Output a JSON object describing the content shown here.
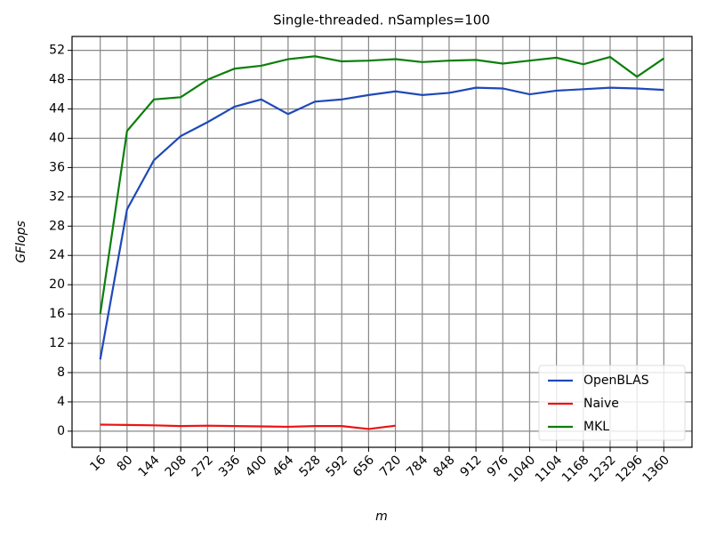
{
  "chart_data": {
    "type": "line",
    "title": "Single-threaded. nSamples=100",
    "x_label": "m",
    "y_label": "GFlops",
    "x": [
      16,
      80,
      144,
      208,
      272,
      336,
      400,
      464,
      528,
      592,
      656,
      720,
      784,
      848,
      912,
      976,
      1040,
      1104,
      1168,
      1232,
      1296,
      1360
    ],
    "series": [
      {
        "name": "OpenBLAS",
        "color": "#1f49b8",
        "values": [
          9.8,
          30.3,
          37.0,
          40.3,
          42.2,
          44.3,
          45.3,
          43.3,
          45.0,
          45.3,
          45.9,
          46.4,
          45.9,
          46.2,
          46.9,
          46.8,
          46.0,
          46.5,
          46.7,
          46.9,
          46.8,
          46.6
        ]
      },
      {
        "name": "Naive",
        "color": "#ee1111",
        "values": [
          0.9,
          0.85,
          0.8,
          0.7,
          0.75,
          0.7,
          0.65,
          0.6,
          0.7,
          0.7,
          0.3,
          0.75,
          null,
          null,
          null,
          null,
          null,
          null,
          null,
          null,
          null,
          null
        ]
      },
      {
        "name": "MKL",
        "color": "#0a7f0a",
        "values": [
          16.0,
          41.0,
          45.3,
          45.6,
          48.0,
          49.5,
          49.9,
          50.8,
          51.2,
          50.5,
          50.6,
          50.8,
          50.4,
          50.6,
          50.7,
          50.2,
          50.6,
          51.0,
          50.1,
          51.1,
          48.4,
          50.9
        ]
      }
    ],
    "xlim": [
      -51.2,
      1427.2
    ],
    "ylim": [
      -2.2,
      53.9
    ],
    "xticks": [
      16,
      80,
      144,
      208,
      272,
      336,
      400,
      464,
      528,
      592,
      656,
      720,
      784,
      848,
      912,
      976,
      1040,
      1104,
      1168,
      1232,
      1296,
      1360
    ],
    "yticks": [
      0,
      4,
      8,
      12,
      16,
      20,
      24,
      28,
      32,
      36,
      40,
      44,
      48,
      52
    ],
    "grid": true,
    "legend": "lower right"
  }
}
